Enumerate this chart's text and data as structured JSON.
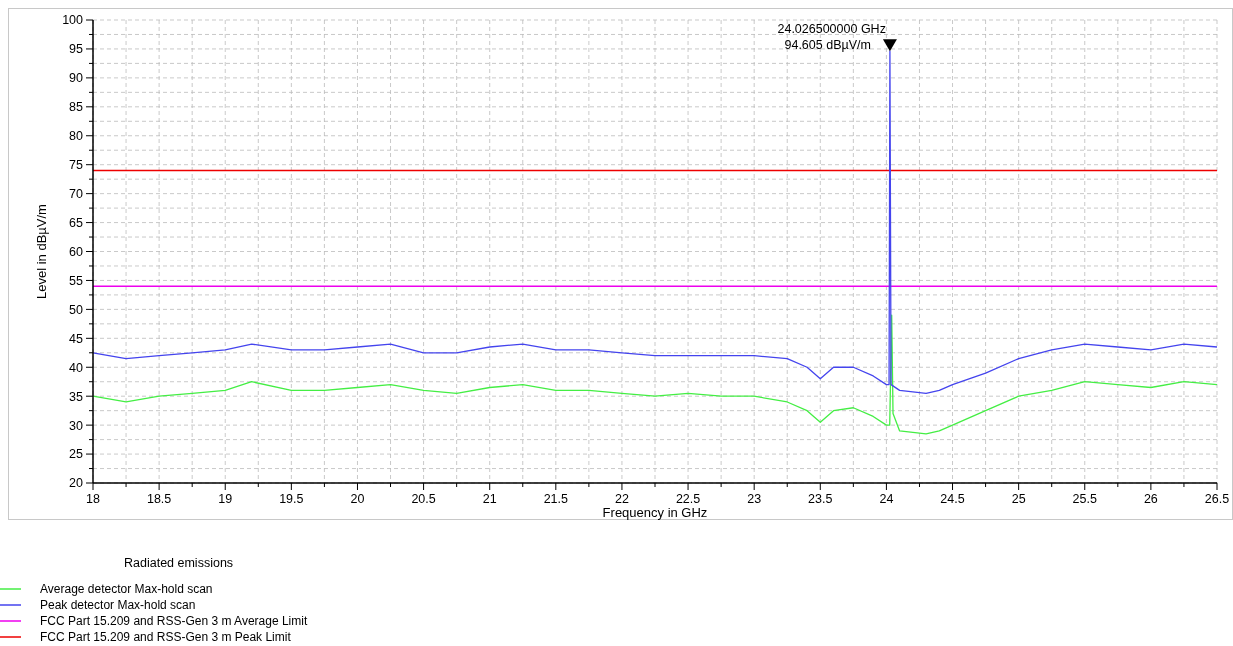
{
  "chart_data": {
    "type": "line",
    "xlabel": "Frequency in GHz",
    "ylabel": "Level in dBµV/m",
    "legend_title": "Radiated emissions",
    "legend": "bottom left",
    "grid": true,
    "marker": "none",
    "line_style": "solid",
    "xlim": [
      18,
      26.5
    ],
    "ylim": [
      20,
      100
    ],
    "xticks": [
      18,
      {
        "value": 18.25,
        "label": null
      },
      18.5,
      {
        "value": 18.75,
        "label": null
      },
      19,
      {
        "value": 19.25,
        "label": null
      },
      19.5,
      {
        "value": 19.75,
        "label": null
      },
      20,
      {
        "value": 20.25,
        "label": null
      },
      20.5,
      {
        "value": 20.75,
        "label": null
      },
      21,
      {
        "value": 21.25,
        "label": null
      },
      21.5,
      {
        "value": 21.75,
        "label": null
      },
      22,
      {
        "value": 22.25,
        "label": null
      },
      22.5,
      {
        "value": 22.75,
        "label": null
      },
      23,
      {
        "value": 23.25,
        "label": null
      },
      23.5,
      {
        "value": 23.75,
        "label": null
      },
      24,
      {
        "value": 24.25,
        "label": null
      },
      24.5,
      {
        "value": 24.75,
        "label": null
      },
      25,
      {
        "value": 25.25,
        "label": null
      },
      25.5,
      {
        "value": 25.75,
        "label": null
      },
      26,
      {
        "value": 26.25,
        "label": null
      },
      26.5
    ],
    "yticks": [
      20,
      {
        "value": 22.5,
        "label": null
      },
      25,
      {
        "value": 27.5,
        "label": null
      },
      30,
      {
        "value": 32.5,
        "label": null
      },
      35,
      {
        "value": 37.5,
        "label": null
      },
      40,
      {
        "value": 42.5,
        "label": null
      },
      45,
      {
        "value": 47.5,
        "label": null
      },
      50,
      {
        "value": 52.5,
        "label": null
      },
      55,
      {
        "value": 57.5,
        "label": null
      },
      60,
      {
        "value": 62.5,
        "label": null
      },
      65,
      {
        "value": 67.5,
        "label": null
      },
      70,
      {
        "value": 72.5,
        "label": null
      },
      75,
      {
        "value": 77.5,
        "label": null
      },
      80,
      {
        "value": 82.5,
        "label": null
      },
      85,
      {
        "value": 87.5,
        "label": null
      },
      90,
      {
        "value": 92.5,
        "label": null
      },
      95,
      {
        "value": 97.5,
        "label": null
      },
      100
    ],
    "x": [
      18,
      18.25,
      18.5,
      18.75,
      19,
      19.2,
      19.5,
      19.75,
      20,
      20.25,
      20.5,
      20.75,
      21,
      21.25,
      21.5,
      21.75,
      22,
      22.25,
      22.5,
      22.75,
      23,
      23.25,
      23.4,
      23.5,
      23.6,
      23.75,
      23.9,
      24,
      24.02,
      24.0265,
      24.035,
      24.1,
      24.3,
      24.4,
      24.5,
      24.75,
      25,
      25.25,
      25.5,
      25.75,
      26,
      26.25,
      26.5
    ],
    "series": [
      {
        "name": "Average detector Max-hold scan",
        "color": "#44ee44",
        "x": [
          18,
          18.25,
          18.5,
          18.75,
          19,
          19.2,
          19.5,
          19.75,
          20,
          20.25,
          20.5,
          20.75,
          21,
          21.25,
          21.5,
          21.75,
          22,
          22.25,
          22.5,
          22.75,
          23,
          23.25,
          23.4,
          23.5,
          23.6,
          23.75,
          23.9,
          24,
          24.025,
          24.04,
          24.05,
          24.1,
          24.3,
          24.4,
          24.5,
          24.75,
          25,
          25.25,
          25.5,
          25.75,
          26,
          26.25,
          26.5
        ],
        "values": [
          35,
          34,
          35,
          35.5,
          36,
          37.5,
          36,
          36,
          36.5,
          37,
          36,
          35.5,
          36.5,
          37,
          36,
          36,
          35.5,
          35,
          35.5,
          35,
          35,
          34,
          32.5,
          30.5,
          32.5,
          33,
          31.5,
          30,
          30,
          49,
          32,
          29,
          28.5,
          29,
          30,
          32.5,
          35,
          36,
          37.5,
          37,
          36.5,
          37.5,
          37
        ]
      },
      {
        "name": "Peak detector Max-hold scan",
        "color": "#4444ee",
        "values": [
          42.5,
          41.5,
          42,
          42.5,
          43,
          44,
          43,
          43,
          43.5,
          44,
          42.5,
          42.5,
          43.5,
          44,
          43,
          43,
          42.5,
          42,
          42,
          42,
          42,
          41.5,
          40,
          38,
          40,
          40,
          38.5,
          37,
          37,
          94.605,
          37,
          36,
          35.5,
          36,
          37,
          39,
          41.5,
          43,
          44,
          43.5,
          43,
          44,
          43.5
        ]
      }
    ],
    "ref_lines": [
      {
        "axis": "y",
        "value": 54,
        "label": "FCC Part 15.209 and RSS-Gen 3 m Average Limit",
        "color": "#ee00ee"
      },
      {
        "axis": "y",
        "value": 74,
        "label": "FCC Part 15.209 and RSS-Gen 3 m Peak Limit",
        "color": "#ee0000"
      }
    ],
    "annotations": [
      {
        "text": "24.026500000 GHz\n94.605 dBµV/m",
        "x": 24.0265,
        "y": 94.605
      }
    ]
  }
}
